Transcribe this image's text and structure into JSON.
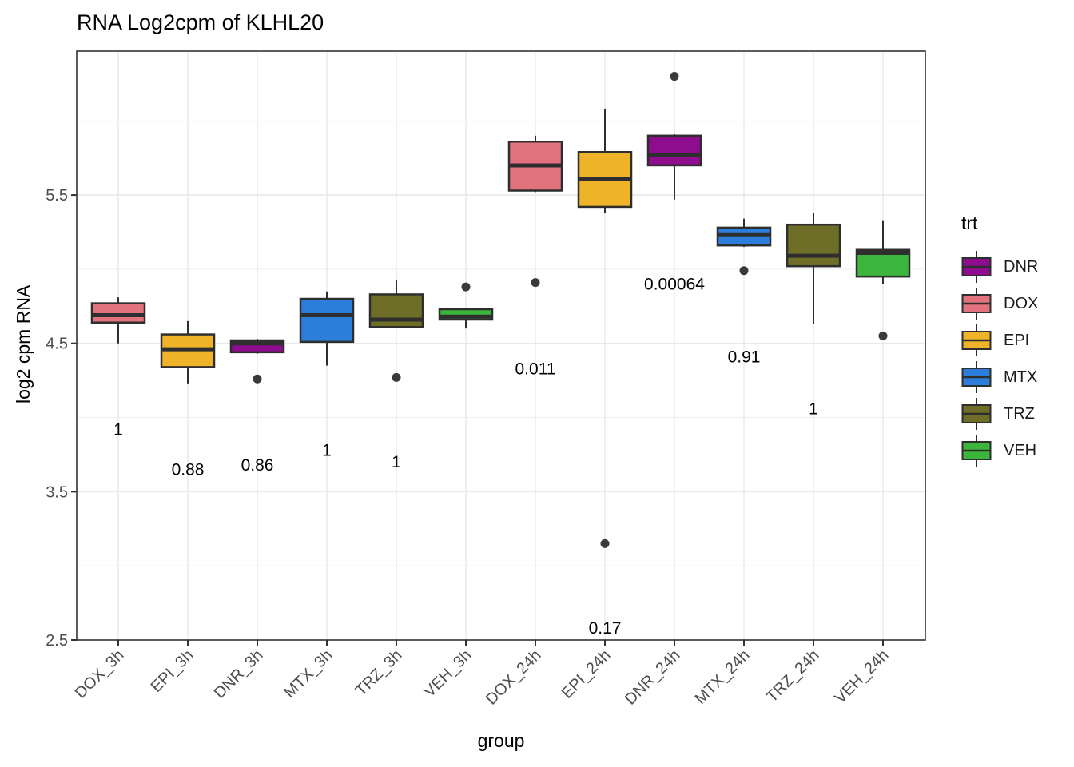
{
  "chart_data": {
    "type": "boxplot",
    "title": "RNA Log2cpm of KLHL20",
    "xlabel": "group",
    "ylabel": "log2 cpm RNA",
    "ylim": [
      2.5,
      6.47
    ],
    "yticks": [
      2.5,
      3.5,
      4.5,
      5.5
    ],
    "yminor": [
      3.0,
      4.0,
      5.0,
      6.0
    ],
    "grid": true,
    "legend_position": "right",
    "legend_title": "trt",
    "legend": [
      {
        "label": "DNR",
        "color": "#8E0C8E"
      },
      {
        "label": "DOX",
        "color": "#E2727E"
      },
      {
        "label": "EPI",
        "color": "#EFB32A"
      },
      {
        "label": "MTX",
        "color": "#2D7DDB"
      },
      {
        "label": "TRZ",
        "color": "#6F6E28"
      },
      {
        "label": "VEH",
        "color": "#3CB53C"
      }
    ],
    "groups": [
      {
        "label": "DOX_3h",
        "trt": "DOX",
        "color": "#E2727E",
        "whisker_low": 4.5,
        "q1": 4.64,
        "median": 4.69,
        "q3": 4.77,
        "whisker_high": 4.81,
        "outliers": [],
        "p_label": "1",
        "p_y": 3.92
      },
      {
        "label": "EPI_3h",
        "trt": "EPI",
        "color": "#EFB32A",
        "whisker_low": 4.23,
        "q1": 4.34,
        "median": 4.46,
        "q3": 4.56,
        "whisker_high": 4.65,
        "outliers": [],
        "p_label": "0.88",
        "p_y": 3.65
      },
      {
        "label": "DNR_3h",
        "trt": "DNR",
        "color": "#8E0C8E",
        "whisker_low": 4.43,
        "q1": 4.44,
        "median": 4.5,
        "q3": 4.52,
        "whisker_high": 4.53,
        "outliers": [
          4.26
        ],
        "p_label": "0.86",
        "p_y": 3.68
      },
      {
        "label": "MTX_3h",
        "trt": "MTX",
        "color": "#2D7DDB",
        "whisker_low": 4.35,
        "q1": 4.51,
        "median": 4.69,
        "q3": 4.8,
        "whisker_high": 4.85,
        "outliers": [],
        "p_label": "1",
        "p_y": 3.78
      },
      {
        "label": "TRZ_3h",
        "trt": "TRZ",
        "color": "#6F6E28",
        "whisker_low": 4.61,
        "q1": 4.61,
        "median": 4.66,
        "q3": 4.83,
        "whisker_high": 4.93,
        "outliers": [
          4.27
        ],
        "p_label": "1",
        "p_y": 3.7
      },
      {
        "label": "VEH_3h",
        "trt": "VEH",
        "color": "#3CB53C",
        "whisker_low": 4.6,
        "q1": 4.66,
        "median": 4.68,
        "q3": 4.73,
        "whisker_high": 4.73,
        "outliers": [
          4.88
        ],
        "p_label": null,
        "p_y": null
      },
      {
        "label": "DOX_24h",
        "trt": "DOX",
        "color": "#E2727E",
        "whisker_low": 5.52,
        "q1": 5.53,
        "median": 5.7,
        "q3": 5.86,
        "whisker_high": 5.9,
        "outliers": [
          4.91
        ],
        "p_label": "0.011",
        "p_y": 4.33
      },
      {
        "label": "EPI_24h",
        "trt": "EPI",
        "color": "#EFB32A",
        "whisker_low": 5.38,
        "q1": 5.42,
        "median": 5.61,
        "q3": 5.79,
        "whisker_high": 6.08,
        "outliers": [
          3.15
        ],
        "p_label": "0.17",
        "p_y": 2.58
      },
      {
        "label": "DNR_24h",
        "trt": "DNR",
        "color": "#8E0C8E",
        "whisker_low": 5.47,
        "q1": 5.7,
        "median": 5.77,
        "q3": 5.9,
        "whisker_high": 5.91,
        "outliers": [
          6.3
        ],
        "p_label": "0.00064",
        "p_y": 4.9
      },
      {
        "label": "MTX_24h",
        "trt": "MTX",
        "color": "#2D7DDB",
        "whisker_low": 5.15,
        "q1": 5.16,
        "median": 5.23,
        "q3": 5.28,
        "whisker_high": 5.34,
        "outliers": [
          4.99
        ],
        "p_label": "0.91",
        "p_y": 4.41
      },
      {
        "label": "TRZ_24h",
        "trt": "TRZ",
        "color": "#6F6E28",
        "whisker_low": 4.63,
        "q1": 5.02,
        "median": 5.09,
        "q3": 5.3,
        "whisker_high": 5.38,
        "outliers": [],
        "p_label": "1",
        "p_y": 4.06
      },
      {
        "label": "VEH_24h",
        "trt": "VEH",
        "color": "#3CB53C",
        "whisker_low": 4.9,
        "q1": 4.95,
        "median": 5.11,
        "q3": 5.13,
        "whisker_high": 5.33,
        "outliers": [
          4.55
        ],
        "p_label": null,
        "p_y": null
      }
    ],
    "style": {
      "box_stroke": "#2e2e2e",
      "grid_major_color": "#e8e8e8",
      "grid_minor_color": "#efefef",
      "tick_label_color": "#4d4d4d",
      "annotation_color": "#000000",
      "outlier_color": "#3a3a3a",
      "panel_border_color": "#333333"
    }
  }
}
